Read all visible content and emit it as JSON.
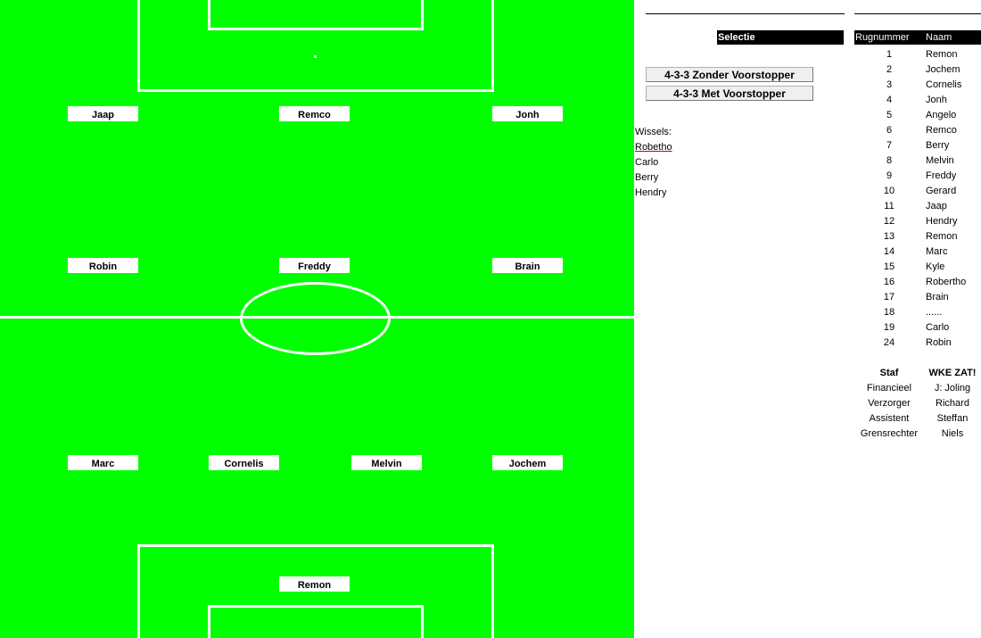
{
  "field": {
    "players": {
      "jaap": "Jaap",
      "remco": "Remco",
      "jonh": "Jonh",
      "robin": "Robin",
      "freddy": "Freddy",
      "brain": "Brain",
      "marc": "Marc",
      "cornelis": "Cornelis",
      "melvin": "Melvin",
      "jochem": "Jochem",
      "remon": "Remon"
    }
  },
  "panel": {
    "selectie_label": "Selectie",
    "buttons": {
      "zonder": "4-3-3 Zonder Voorstopper",
      "met": "4-3-3 Met Voorstopper"
    },
    "wissels": {
      "label": "Wissels:",
      "names": [
        "Robetho",
        "Carlo",
        "Berry",
        "Hendry"
      ]
    }
  },
  "roster": {
    "header_number": "Rugnummer",
    "header_name": "Naam",
    "rows": [
      {
        "number": "1",
        "name": "Remon"
      },
      {
        "number": "2",
        "name": "Jochem"
      },
      {
        "number": "3",
        "name": "Cornelis"
      },
      {
        "number": "4",
        "name": "Jonh"
      },
      {
        "number": "5",
        "name": "Angelo"
      },
      {
        "number": "6",
        "name": "Remco"
      },
      {
        "number": "7",
        "name": "Berry"
      },
      {
        "number": "8",
        "name": "Melvin"
      },
      {
        "number": "9",
        "name": "Freddy"
      },
      {
        "number": "10",
        "name": "Gerard"
      },
      {
        "number": "11",
        "name": "Jaap"
      },
      {
        "number": "12",
        "name": "Hendry"
      },
      {
        "number": "13",
        "name": "Remon"
      },
      {
        "number": "14",
        "name": "Marc"
      },
      {
        "number": "15",
        "name": "Kyle"
      },
      {
        "number": "16",
        "name": "Robertho"
      },
      {
        "number": "17",
        "name": "Brain"
      },
      {
        "number": "18",
        "name": "......"
      },
      {
        "number": "19",
        "name": "Carlo"
      },
      {
        "number": "24",
        "name": "Robin"
      }
    ]
  },
  "staff": {
    "header_role": "Staf",
    "header_name": "WKE ZAT!",
    "rows": [
      {
        "role": "Financieel",
        "name": "J: Joling"
      },
      {
        "role": "Verzorger",
        "name": "Richard"
      },
      {
        "role": "Assistent",
        "name": "Steffan"
      },
      {
        "role": "Grensrechter",
        "name": "Niels"
      }
    ]
  }
}
